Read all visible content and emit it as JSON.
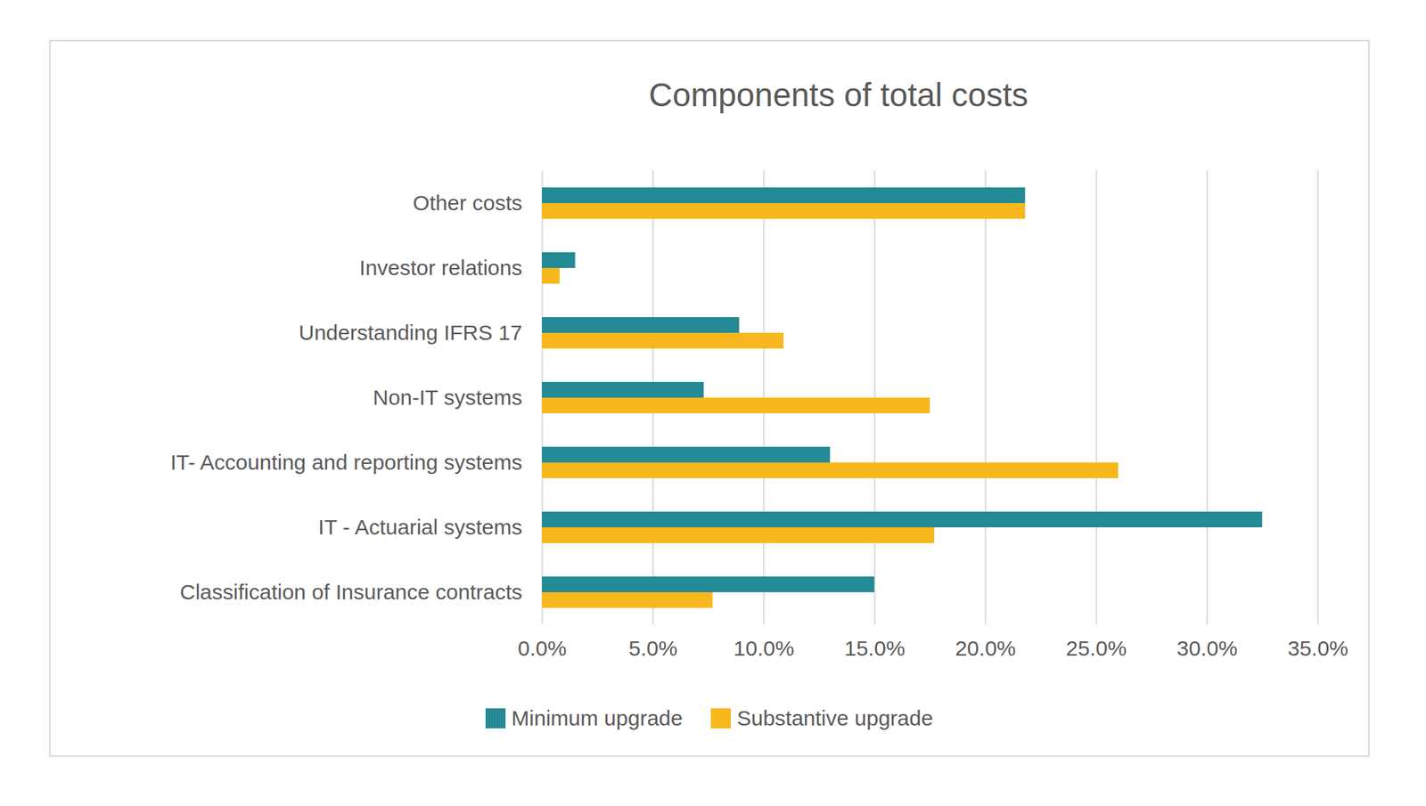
{
  "chart_data": {
    "type": "bar",
    "orientation": "horizontal",
    "title": "Components of total costs",
    "categories": [
      "Other costs",
      "Investor relations",
      "Understanding IFRS 17",
      "Non-IT systems",
      "IT- Accounting and reporting systems",
      "IT - Actuarial systems",
      "Classification of Insurance contracts"
    ],
    "series": [
      {
        "name": "Minimum upgrade",
        "color": "#248a95",
        "values": [
          21.8,
          1.5,
          8.9,
          7.3,
          13.0,
          32.5,
          15.0
        ]
      },
      {
        "name": "Substantive upgrade",
        "color": "#f8b71c",
        "values": [
          21.8,
          0.8,
          10.9,
          17.5,
          26.0,
          17.7,
          7.7
        ]
      }
    ],
    "xlim": [
      0,
      35
    ],
    "xticks": [
      {
        "value": 0,
        "label": "0.0%"
      },
      {
        "value": 5,
        "label": "5.0%"
      },
      {
        "value": 10,
        "label": "10.0%"
      },
      {
        "value": 15,
        "label": "15.0%"
      },
      {
        "value": 20,
        "label": "20.0%"
      },
      {
        "value": 25,
        "label": "25.0%"
      },
      {
        "value": 30,
        "label": "30.0%"
      },
      {
        "value": 35,
        "label": "35.0%"
      }
    ],
    "grid": true,
    "legend": "bottom"
  }
}
